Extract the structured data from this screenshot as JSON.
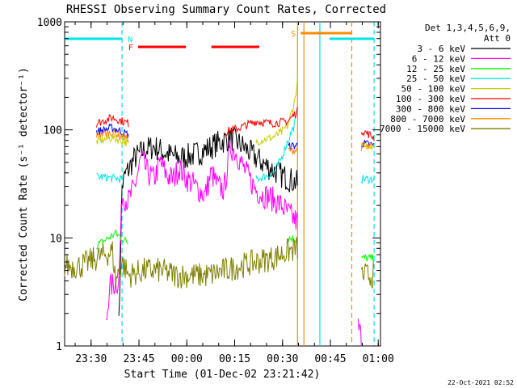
{
  "chart_data": {
    "type": "line",
    "title": "RHESSI Observing Summary Count Rates, Corrected",
    "xlabel": "Start Time (01-Dec-02 23:21:42)",
    "ylabel": "Corrected Count Rate (s⁻¹ detector⁻¹)",
    "yscale": "log",
    "ylim": [
      1,
      1000
    ],
    "xlim_minutes_after_start": [
      0,
      99
    ],
    "x_tick_labels": [
      "23:30",
      "23:45",
      "00:00",
      "00:15",
      "00:30",
      "00:45",
      "01:00"
    ],
    "y_tick_labels": [
      "1",
      "10",
      "100",
      "1000"
    ],
    "legend_header": [
      "Det 1,3,4,5,6,9,",
      "Att 0"
    ],
    "legend_position": "right",
    "grid": false,
    "timestamp": "22-Oct-2021 02:52",
    "flags": [
      {
        "label": "N",
        "color": "#00e5e5",
        "segments": [
          [
            0,
            18
          ],
          [
            83,
            97
          ]
        ]
      },
      {
        "label": "F",
        "color": "#ff0000",
        "segments": [
          [
            23,
            38
          ],
          [
            46,
            61
          ]
        ]
      },
      {
        "label": "S",
        "color": "#ff8c00",
        "segments": [
          [
            74,
            90
          ]
        ]
      }
    ],
    "markers": [
      {
        "time": 18,
        "color": "#00e5e5",
        "style": "dashed"
      },
      {
        "time": 73,
        "color": "#ff8c00",
        "style": "solid"
      },
      {
        "time": 75,
        "color": "#ff8c00",
        "style": "solid"
      },
      {
        "time": 80,
        "color": "#00e5e5",
        "style": "solid"
      },
      {
        "time": 90,
        "color": "#ff8c00",
        "style": "dashed"
      },
      {
        "time": 97,
        "color": "#00e5e5",
        "style": "dashed"
      }
    ],
    "series": [
      {
        "name": "3 - 6 keV",
        "color": "#000000",
        "x": [
          0,
          17,
          18,
          19,
          22,
          25,
          28,
          32,
          36,
          40,
          44,
          48,
          52,
          56,
          60,
          64,
          68,
          73
        ],
        "y": [
          1.3,
          1.5,
          30,
          38,
          55,
          65,
          70,
          60,
          55,
          58,
          65,
          75,
          85,
          70,
          55,
          45,
          38,
          32
        ]
      },
      {
        "name": "6 - 12 keV",
        "color": "#ff00ff",
        "x": [
          0,
          13,
          14,
          17,
          18,
          20,
          22,
          24,
          26,
          28,
          30,
          32,
          34,
          36,
          38,
          40,
          42,
          44,
          46,
          48,
          50,
          52,
          54,
          56,
          58,
          60,
          62,
          64,
          66,
          68,
          70,
          73,
          92,
          93
        ],
        "y": [
          1.5,
          1.5,
          3.5,
          4,
          25,
          22,
          30,
          55,
          40,
          35,
          50,
          38,
          35,
          45,
          36,
          32,
          28,
          25,
          40,
          30,
          28,
          70,
          60,
          45,
          35,
          28,
          25,
          24,
          22,
          20,
          17,
          14,
          1.5,
          1.2
        ]
      },
      {
        "name": "12 - 25 keV",
        "color": "#00ff00",
        "x": [
          0,
          10,
          16,
          20,
          30,
          40,
          50,
          60,
          70,
          73,
          93,
          97
        ],
        "y": [
          9.5,
          8.5,
          11,
          9,
          8.5,
          8.5,
          9,
          9.5,
          10,
          9.8,
          6.5,
          6.5
        ]
      },
      {
        "name": "25 - 50 keV",
        "color": "#00e5e5",
        "x": [
          0,
          10,
          18,
          30,
          45,
          60,
          64,
          66,
          68,
          70,
          72,
          73,
          93,
          97
        ],
        "y": [
          36,
          37,
          35,
          34,
          33,
          35,
          38,
          42,
          55,
          80,
          110,
          150,
          35,
          35
        ]
      },
      {
        "name": "50 - 100 keV",
        "color": "#cccc00",
        "x": [
          0,
          10,
          15,
          20,
          30,
          40,
          50,
          60,
          65,
          68,
          70,
          71,
          72,
          73,
          93,
          97
        ],
        "y": [
          75,
          78,
          85,
          75,
          72,
          70,
          72,
          78,
          85,
          95,
          110,
          140,
          180,
          280,
          70,
          72
        ]
      },
      {
        "name": "100 - 300 keV",
        "color": "#ff0000",
        "x": [
          0,
          10,
          15,
          20,
          30,
          40,
          50,
          55,
          60,
          65,
          70,
          73,
          93,
          97
        ],
        "y": [
          110,
          115,
          130,
          115,
          100,
          92,
          95,
          105,
          120,
          115,
          120,
          150,
          100,
          85
        ]
      },
      {
        "name": "300 - 800 keV",
        "color": "#0000ff",
        "x": [
          0,
          10,
          15,
          20,
          30,
          40,
          50,
          60,
          70,
          73,
          93,
          97
        ],
        "y": [
          95,
          96,
          105,
          90,
          80,
          75,
          72,
          70,
          70,
          72,
          75,
          72
        ]
      },
      {
        "name": "800 - 7000 keV",
        "color": "#ff8c00",
        "x": [
          0,
          10,
          15,
          20,
          30,
          40,
          50,
          60,
          70,
          73,
          93,
          97
        ],
        "y": [
          88,
          90,
          95,
          82,
          75,
          70,
          68,
          66,
          65,
          65,
          70,
          68
        ]
      },
      {
        "name": "7000 - 15000 keV",
        "color": "#808000",
        "x": [
          0,
          5,
          10,
          15,
          16,
          18,
          20,
          25,
          30,
          35,
          40,
          45,
          50,
          55,
          60,
          65,
          70,
          73,
          93,
          97
        ],
        "y": [
          5.5,
          5.5,
          6.5,
          7.5,
          4,
          6,
          4.5,
          5,
          5,
          4.5,
          4.5,
          4.5,
          5,
          5.5,
          6,
          6.5,
          7.5,
          8,
          4.5,
          4.5
        ]
      }
    ]
  }
}
